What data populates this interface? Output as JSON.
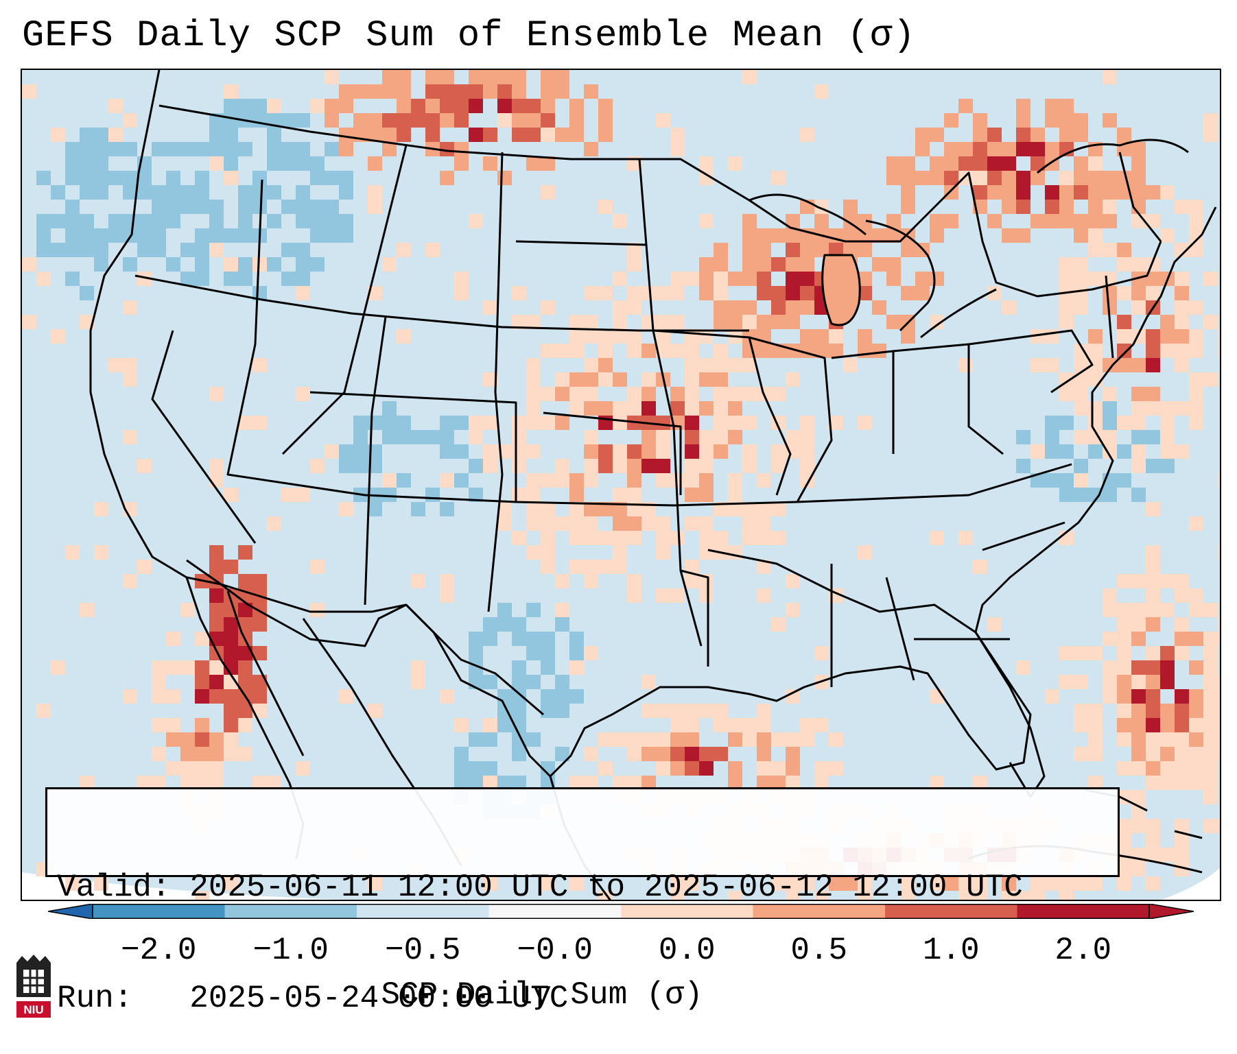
{
  "title": "GEFS Daily SCP Sum of Ensemble Mean (σ)",
  "info": {
    "valid_line": "Valid: 2025-06-11 12:00 UTC to 2025-06-12 12:00 UTC",
    "run_line": "Run:   2025-05-24 00:00 UTC"
  },
  "colorbar": {
    "label": "SCP Daily Sum (σ)",
    "ticks": [
      "−2.0",
      "−1.0",
      "−0.5",
      "−0.0",
      "0.0",
      "0.5",
      "1.0",
      "2.0"
    ],
    "colors": [
      "#4393c3",
      "#92c5de",
      "#d1e5f0",
      "#f7f7f7",
      "#fddbc7",
      "#f4a582",
      "#d6604d",
      "#b2182b"
    ],
    "extend_low_color": "#2166ac",
    "extend_high_color": "#b2182b"
  },
  "logo": {
    "text": "NIU",
    "color": "#c8102e"
  },
  "map": {
    "background_color": "#d1e5f0",
    "positive_colors": [
      "#fddbc7",
      "#f4a582",
      "#d6604d",
      "#b2182b"
    ],
    "negative_color": "#92c5de"
  }
}
